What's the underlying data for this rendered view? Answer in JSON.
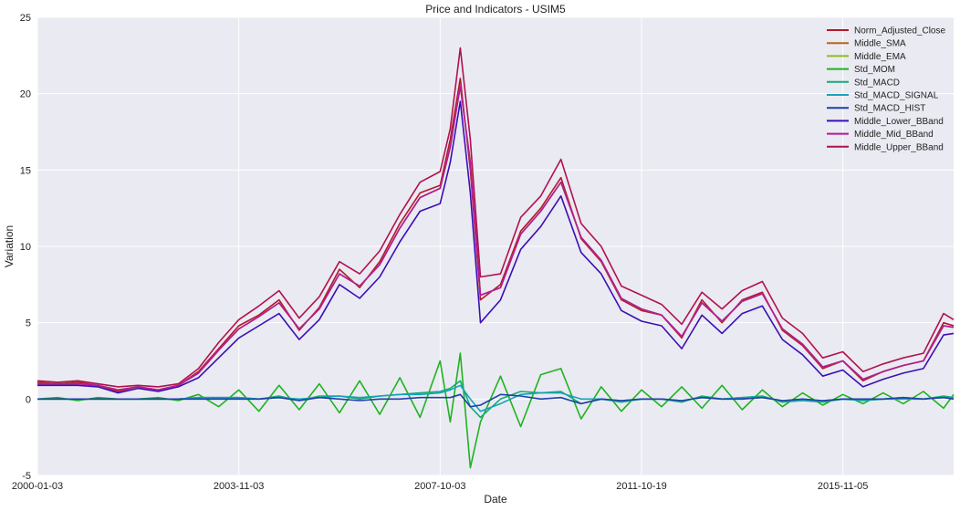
{
  "chart_data": {
    "type": "line",
    "title": "Price and Indicators - USIM5",
    "xlabel": "Date",
    "ylabel": "Variation",
    "x_tick_labels": [
      "2000-01-03",
      "2003-11-03",
      "2007-10-03",
      "2011-10-19",
      "2015-11-05"
    ],
    "x_tick_positions": [
      0,
      1,
      2,
      3,
      4
    ],
    "xlim": [
      0,
      4.55
    ],
    "ylim": [
      -5,
      25
    ],
    "y_ticks": [
      -5,
      0,
      5,
      10,
      15,
      20,
      25
    ],
    "grid": true,
    "legend_position": "top-right",
    "x": [
      0,
      0.1,
      0.2,
      0.3,
      0.4,
      0.5,
      0.6,
      0.7,
      0.8,
      0.9,
      1.0,
      1.1,
      1.2,
      1.3,
      1.4,
      1.5,
      1.6,
      1.7,
      1.8,
      1.9,
      2.0,
      2.05,
      2.1,
      2.15,
      2.2,
      2.3,
      2.4,
      2.5,
      2.6,
      2.7,
      2.8,
      2.9,
      3.0,
      3.1,
      3.2,
      3.3,
      3.4,
      3.5,
      3.6,
      3.7,
      3.8,
      3.9,
      4.0,
      4.1,
      4.2,
      4.3,
      4.4,
      4.5,
      4.55
    ],
    "series": [
      {
        "name": "Norm_Adjusted_Close",
        "color": "#b2182b",
        "values": [
          1.1,
          1.0,
          1.1,
          0.9,
          0.5,
          0.8,
          0.6,
          0.9,
          1.8,
          3.3,
          4.8,
          5.5,
          6.5,
          4.5,
          6.0,
          8.5,
          7.3,
          9.0,
          11.5,
          13.5,
          14.0,
          17.0,
          21.0,
          15.0,
          6.5,
          7.5,
          11.0,
          12.5,
          14.5,
          10.5,
          9.0,
          6.5,
          5.8,
          5.5,
          4.0,
          6.5,
          5.0,
          6.5,
          7.0,
          4.5,
          3.5,
          2.0,
          2.5,
          1.2,
          1.8,
          2.2,
          2.5,
          5.0,
          4.8
        ]
      },
      {
        "name": "Middle_SMA",
        "color": "#b5651d",
        "values": [
          1.0,
          1.0,
          1.0,
          0.9,
          0.6,
          0.8,
          0.6,
          0.9,
          1.7,
          3.2,
          4.6,
          5.4,
          6.3,
          4.6,
          5.9,
          8.2,
          7.4,
          8.8,
          11.2,
          13.2,
          13.8,
          16.5,
          20.5,
          15.5,
          6.8,
          7.3,
          10.8,
          12.3,
          14.2,
          10.6,
          9.1,
          6.6,
          5.9,
          5.5,
          4.1,
          6.3,
          5.1,
          6.4,
          6.9,
          4.6,
          3.6,
          2.1,
          2.5,
          1.3,
          1.8,
          2.2,
          2.5,
          4.8,
          4.7
        ]
      },
      {
        "name": "Middle_EMA",
        "color": "#8fbc1e",
        "values": [
          1.0,
          1.0,
          1.0,
          0.9,
          0.6,
          0.8,
          0.6,
          0.9,
          1.7,
          3.2,
          4.6,
          5.4,
          6.3,
          4.6,
          5.9,
          8.2,
          7.4,
          8.8,
          11.2,
          13.2,
          13.8,
          16.5,
          20.5,
          15.5,
          6.8,
          7.3,
          10.8,
          12.3,
          14.2,
          10.6,
          9.1,
          6.6,
          5.9,
          5.5,
          4.1,
          6.3,
          5.1,
          6.4,
          6.9,
          4.6,
          3.6,
          2.1,
          2.5,
          1.3,
          1.8,
          2.2,
          2.5,
          4.8,
          4.7
        ]
      },
      {
        "name": "Std_MOM",
        "color": "#1fb31f",
        "values": [
          0,
          0.1,
          -0.1,
          0.1,
          0,
          0,
          0.1,
          -0.1,
          0.3,
          -0.5,
          0.6,
          -0.8,
          0.9,
          -0.7,
          1.0,
          -0.9,
          1.2,
          -1.0,
          1.4,
          -1.2,
          2.5,
          -1.5,
          3.0,
          -4.5,
          -1.5,
          1.5,
          -1.8,
          1.6,
          2.0,
          -1.3,
          0.8,
          -0.8,
          0.6,
          -0.5,
          0.8,
          -0.6,
          0.9,
          -0.7,
          0.6,
          -0.5,
          0.4,
          -0.4,
          0.3,
          -0.3,
          0.4,
          -0.3,
          0.5,
          -0.6,
          0.3
        ]
      },
      {
        "name": "Std_MACD",
        "color": "#17a97a",
        "values": [
          0,
          0,
          0,
          0,
          0,
          0,
          0,
          0,
          0.1,
          0.1,
          0.1,
          0,
          0.2,
          -0.1,
          0.2,
          0.2,
          0,
          0.2,
          0.3,
          0.4,
          0.5,
          0.7,
          1.2,
          -0.5,
          -1.2,
          0,
          0.5,
          0.4,
          0.5,
          -0.3,
          0,
          -0.2,
          0,
          0,
          -0.2,
          0.2,
          0,
          0.1,
          0.2,
          -0.2,
          -0.1,
          -0.2,
          0,
          -0.1,
          0,
          0.1,
          0,
          0.2,
          0.1
        ]
      },
      {
        "name": "Std_MACD_SIGNAL",
        "color": "#17a2b8",
        "values": [
          0,
          0,
          0,
          0,
          0,
          0,
          0,
          0,
          0.1,
          0.1,
          0.1,
          0,
          0.1,
          0,
          0.1,
          0.2,
          0.1,
          0.2,
          0.3,
          0.3,
          0.4,
          0.6,
          0.9,
          0,
          -0.8,
          -0.3,
          0.3,
          0.4,
          0.4,
          0,
          0,
          -0.1,
          0,
          0,
          -0.1,
          0.1,
          0,
          0.1,
          0.1,
          -0.1,
          -0.1,
          -0.1,
          0,
          -0.1,
          0,
          0,
          0,
          0.1,
          0.1
        ]
      },
      {
        "name": "Std_MACD_HIST",
        "color": "#1f3fa8",
        "values": [
          0,
          0,
          0,
          0,
          0,
          0,
          0,
          0,
          0,
          0,
          0,
          0,
          0.1,
          -0.1,
          0.1,
          0,
          -0.1,
          0,
          0,
          0.1,
          0.1,
          0.1,
          0.3,
          -0.5,
          -0.4,
          0.3,
          0.2,
          0,
          0.1,
          -0.3,
          0,
          -0.1,
          0,
          0,
          -0.1,
          0.1,
          0,
          0,
          0.1,
          -0.1,
          0,
          -0.1,
          0,
          0,
          0,
          0.1,
          0,
          0.1,
          0
        ]
      },
      {
        "name": "Middle_Lower_BBand",
        "color": "#3a10b5",
        "values": [
          0.9,
          0.9,
          0.9,
          0.8,
          0.4,
          0.7,
          0.5,
          0.8,
          1.4,
          2.7,
          4.0,
          4.8,
          5.6,
          3.9,
          5.2,
          7.5,
          6.6,
          8.0,
          10.3,
          12.3,
          12.8,
          15.5,
          19.5,
          13.5,
          5.0,
          6.5,
          9.8,
          11.3,
          13.3,
          9.6,
          8.2,
          5.8,
          5.1,
          4.8,
          3.3,
          5.5,
          4.3,
          5.6,
          6.1,
          3.9,
          2.9,
          1.5,
          1.9,
          0.8,
          1.3,
          1.7,
          2.0,
          4.2,
          4.3
        ]
      },
      {
        "name": "Middle_Mid_BBand",
        "color": "#b5179e",
        "values": [
          1.0,
          1.0,
          1.0,
          0.9,
          0.6,
          0.8,
          0.6,
          0.9,
          1.7,
          3.2,
          4.6,
          5.4,
          6.3,
          4.6,
          5.9,
          8.2,
          7.4,
          8.8,
          11.2,
          13.2,
          13.8,
          16.5,
          20.5,
          15.5,
          6.8,
          7.3,
          10.8,
          12.3,
          14.2,
          10.6,
          9.1,
          6.6,
          5.9,
          5.5,
          4.1,
          6.3,
          5.1,
          6.4,
          6.9,
          4.6,
          3.6,
          2.1,
          2.5,
          1.3,
          1.8,
          2.2,
          2.5,
          4.8,
          4.7
        ]
      },
      {
        "name": "Middle_Upper_BBand",
        "color": "#b0124f",
        "values": [
          1.2,
          1.1,
          1.2,
          1.0,
          0.8,
          0.9,
          0.8,
          1.0,
          2.0,
          3.7,
          5.2,
          6.1,
          7.1,
          5.3,
          6.7,
          9.0,
          8.2,
          9.7,
          12.1,
          14.2,
          14.9,
          17.7,
          23.0,
          17.0,
          8.0,
          8.2,
          11.9,
          13.3,
          15.7,
          11.5,
          10.0,
          7.4,
          6.8,
          6.2,
          4.9,
          7.0,
          5.9,
          7.1,
          7.7,
          5.3,
          4.3,
          2.7,
          3.1,
          1.8,
          2.3,
          2.7,
          3.0,
          5.6,
          5.2
        ]
      }
    ]
  }
}
